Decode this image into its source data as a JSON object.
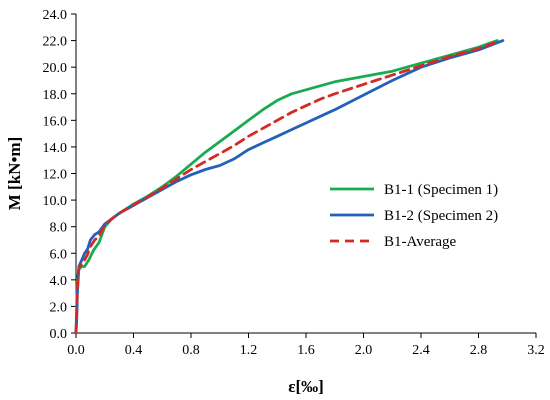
{
  "chart_data": {
    "type": "line",
    "title": "",
    "xlabel": "ε[‰]",
    "ylabel": "M [kN•m]",
    "xlim": [
      0.0,
      3.2
    ],
    "ylim": [
      0.0,
      24.0
    ],
    "xticks": [
      0.0,
      0.4,
      0.8,
      1.2,
      1.6,
      2.0,
      2.4,
      2.8,
      3.2
    ],
    "yticks": [
      0.0,
      2.0,
      4.0,
      6.0,
      8.0,
      10.0,
      12.0,
      14.0,
      16.0,
      18.0,
      20.0,
      22.0,
      24.0
    ],
    "xtick_labels": [
      "0.0",
      "0.4",
      "0.8",
      "1.2",
      "1.6",
      "2.0",
      "2.4",
      "2.8",
      "3.2"
    ],
    "ytick_labels": [
      "0.0",
      "2.0",
      "4.0",
      "6.0",
      "8.0",
      "10.0",
      "12.0",
      "14.0",
      "16.0",
      "18.0",
      "20.0",
      "22.0",
      "24.0"
    ],
    "grid": false,
    "legend_position": "right",
    "series": [
      {
        "name": "B1-1 (Specimen 1)",
        "color": "#1aab50",
        "dash": "solid",
        "x": [
          0.0,
          0.005,
          0.01,
          0.02,
          0.04,
          0.06,
          0.09,
          0.12,
          0.16,
          0.2,
          0.25,
          0.3,
          0.4,
          0.5,
          0.6,
          0.7,
          0.8,
          0.9,
          1.0,
          1.1,
          1.2,
          1.3,
          1.4,
          1.5,
          1.6,
          1.7,
          1.8,
          2.0,
          2.2,
          2.4,
          2.6,
          2.8,
          2.93
        ],
        "y": [
          0.0,
          2.0,
          4.0,
          4.8,
          5.0,
          5.0,
          5.5,
          6.2,
          6.8,
          8.0,
          8.6,
          9.0,
          9.7,
          10.3,
          11.0,
          11.8,
          12.7,
          13.6,
          14.4,
          15.2,
          16.0,
          16.8,
          17.5,
          18.0,
          18.3,
          18.6,
          18.9,
          19.3,
          19.7,
          20.3,
          20.9,
          21.5,
          22.0
        ]
      },
      {
        "name": "B1-2 (Specimen 2)",
        "color": "#2361b8",
        "dash": "solid",
        "x": [
          0.0,
          0.005,
          0.01,
          0.02,
          0.04,
          0.06,
          0.08,
          0.1,
          0.13,
          0.16,
          0.2,
          0.25,
          0.3,
          0.4,
          0.5,
          0.6,
          0.7,
          0.8,
          0.9,
          1.0,
          1.1,
          1.2,
          1.3,
          1.4,
          1.5,
          1.6,
          1.7,
          1.8,
          2.0,
          2.2,
          2.4,
          2.6,
          2.8,
          2.97
        ],
        "y": [
          0.0,
          1.0,
          3.0,
          5.0,
          5.5,
          6.0,
          6.3,
          7.0,
          7.4,
          7.6,
          8.2,
          8.6,
          9.0,
          9.6,
          10.2,
          10.8,
          11.4,
          11.9,
          12.3,
          12.6,
          13.1,
          13.8,
          14.3,
          14.8,
          15.3,
          15.8,
          16.3,
          16.8,
          17.9,
          19.0,
          20.0,
          20.7,
          21.3,
          22.0
        ]
      },
      {
        "name": "B1-Average",
        "color": "#d42a26",
        "dash": "dashed",
        "x": [
          0.0,
          0.005,
          0.01,
          0.02,
          0.04,
          0.06,
          0.08,
          0.1,
          0.13,
          0.16,
          0.2,
          0.25,
          0.3,
          0.4,
          0.5,
          0.6,
          0.7,
          0.8,
          0.9,
          1.0,
          1.1,
          1.2,
          1.3,
          1.4,
          1.5,
          1.6,
          1.7,
          1.8,
          2.0,
          2.2,
          2.4,
          2.6,
          2.8,
          2.95
        ],
        "y": [
          0.0,
          1.5,
          3.5,
          4.9,
          5.2,
          5.5,
          5.9,
          6.5,
          7.0,
          7.3,
          8.1,
          8.6,
          9.0,
          9.65,
          10.25,
          10.9,
          11.6,
          12.3,
          12.9,
          13.5,
          14.1,
          14.8,
          15.4,
          16.0,
          16.6,
          17.1,
          17.6,
          18.0,
          18.7,
          19.4,
          20.1,
          20.8,
          21.4,
          22.0
        ]
      }
    ]
  }
}
